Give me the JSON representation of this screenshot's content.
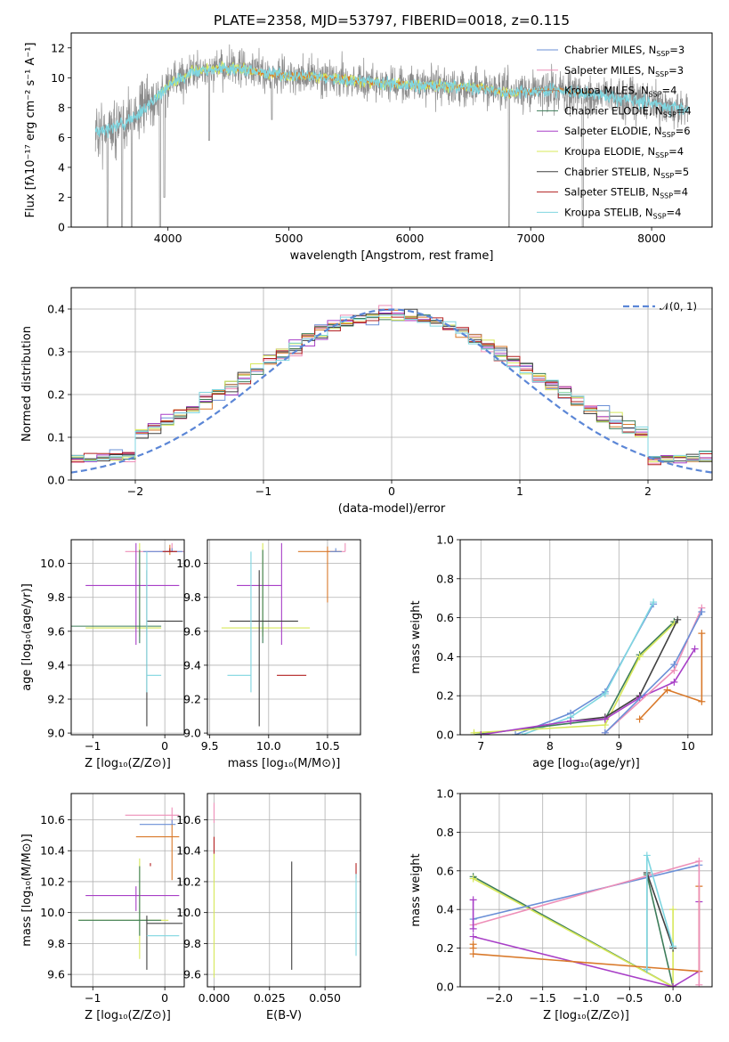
{
  "title": "PLATE=2358, MJD=53797, FIBERID=0018, z=0.115",
  "colors": {
    "Chabrier MILES": "#6a8fd6",
    "Salpeter MILES": "#ee8fb8",
    "Kroupa MILES": "#8a8a8a",
    "Chabrier ELODIE": "#3d7d5a",
    "Salpeter ELODIE": "#a83fc7",
    "Kroupa ELODIE": "#d7e85a",
    "Chabrier STELIB": "#404040",
    "Salpeter STELIB": "#b32020",
    "Kroupa STELIB": "#7fd6e0",
    "orange": "#d9792a",
    "purple": "#7b2fa8",
    "lime": "#b8ec4c",
    "normal_curve": "#5b86d6"
  },
  "chart_data": [
    {
      "id": "spectrum",
      "type": "line",
      "title": "PLATE=2358, MJD=53797, FIBERID=0018, z=0.115",
      "xlabel": "wavelength [Angstrom, rest frame]",
      "ylabel": "Flux [fλ10⁻¹⁷ erg cm⁻² s⁻¹ A⁻¹]",
      "xlim": [
        3200,
        8500
      ],
      "ylim": [
        0,
        13
      ],
      "xticks": [
        "4000",
        "5000",
        "6000",
        "7000",
        "8000"
      ],
      "yticks": [
        "0",
        "2",
        "4",
        "6",
        "8",
        "10",
        "12"
      ],
      "grid": false,
      "legend_position": "right",
      "legend": [
        {
          "label": "Chabrier MILES, N",
          "sub": "SSP",
          "tail": "=3",
          "series": "Chabrier MILES"
        },
        {
          "label": "Salpeter MILES, N",
          "sub": "SSP",
          "tail": "=3",
          "series": "Salpeter MILES"
        },
        {
          "label": "Kroupa MILES, N",
          "sub": "SSP",
          "tail": "=4",
          "series": "Kroupa MILES"
        },
        {
          "label": "Chabrier ELODIE, N",
          "sub": "SSP",
          "tail": "=4",
          "series": "Chabrier ELODIE"
        },
        {
          "label": "Salpeter ELODIE, N",
          "sub": "SSP",
          "tail": "=6",
          "series": "Salpeter ELODIE"
        },
        {
          "label": "Kroupa ELODIE, N",
          "sub": "SSP",
          "tail": "=4",
          "series": "Kroupa ELODIE"
        },
        {
          "label": "Chabrier STELIB, N",
          "sub": "SSP",
          "tail": "=5",
          "series": "Chabrier STELIB"
        },
        {
          "label": "Salpeter STELIB, N",
          "sub": "SSP",
          "tail": "=4",
          "series": "Salpeter STELIB"
        },
        {
          "label": "Kroupa STELIB, N",
          "sub": "SSP",
          "tail": "=4",
          "series": "Kroupa STELIB"
        }
      ],
      "continuum": {
        "x": [
          3400,
          3500,
          3600,
          3700,
          3800,
          3900,
          4000,
          4200,
          4400,
          4600,
          4800,
          5000,
          5200,
          5400,
          5600,
          5800,
          6000,
          6200,
          6400,
          6600,
          6800,
          7000,
          7200,
          7400,
          7600,
          7800,
          8000,
          8200,
          8300
        ],
        "y": [
          6.4,
          6.5,
          6.8,
          7.3,
          7.9,
          8.6,
          9.5,
          10.4,
          10.6,
          10.6,
          10.3,
          10.1,
          10.1,
          9.9,
          9.8,
          9.6,
          9.5,
          9.5,
          9.4,
          9.3,
          9.0,
          9.1,
          9.2,
          9.0,
          8.8,
          8.6,
          8.3,
          8.0,
          7.9
        ]
      },
      "data_noise": 1.1,
      "model_line": "Kroupa STELIB",
      "data_line": "Kroupa MILES",
      "dips": [
        {
          "x": 3500,
          "y": 0.0
        },
        {
          "x": 3620,
          "y": 0.0
        },
        {
          "x": 3700,
          "y": 0.0
        },
        {
          "x": 3935,
          "y": 0.0
        },
        {
          "x": 3970,
          "y": 2.0
        },
        {
          "x": 4340,
          "y": 5.8
        },
        {
          "x": 4860,
          "y": 7.2
        },
        {
          "x": 6820,
          "y": 0.0
        },
        {
          "x": 7430,
          "y": 0.0
        }
      ]
    },
    {
      "id": "residual-hist",
      "type": "histogram",
      "xlabel": "(data-model)/error",
      "ylabel": "Normed distribution",
      "xlim": [
        -2.5,
        2.5
      ],
      "ylim": [
        0,
        0.45
      ],
      "xticks": [
        "−2",
        "−1",
        "0",
        "1",
        "2"
      ],
      "yticks": [
        "0.0",
        "0.1",
        "0.2",
        "0.3",
        "0.4"
      ],
      "grid": true,
      "legend_position": "top-right",
      "legend": {
        "label": "𝒩(0, 1)"
      },
      "bin_width": 0.1,
      "bin_start": -2.5,
      "series": [
        "Chabrier MILES",
        "Salpeter MILES",
        "orange",
        "Chabrier ELODIE",
        "Salpeter ELODIE",
        "Kroupa ELODIE",
        "Chabrier STELIB",
        "Salpeter STELIB",
        "Kroupa STELIB"
      ]
    },
    {
      "id": "age-vs-Z",
      "type": "errorbar",
      "xlabel": "Z [log₁₀(Z/Z⊙)]",
      "ylabel": "age  [log₁₀(age/yr)]",
      "xlim": [
        -1.3,
        0.27
      ],
      "ylim": [
        8.99,
        10.14
      ],
      "xticks": [
        "−1",
        "0"
      ],
      "yticks": [
        "9.0",
        "9.2",
        "9.4",
        "9.6",
        "9.8",
        "10.0"
      ],
      "grid": true,
      "points": [
        {
          "c": "Salpeter MILES",
          "x": 0.1,
          "xerr": [
            0.65,
            0.3
          ],
          "y": 10.07,
          "yerr": [
            0.0,
            0.05
          ]
        },
        {
          "c": "orange",
          "x": 0.07,
          "xerr": [
            0.05,
            0.1
          ],
          "y": 10.07,
          "yerr": [
            0.02,
            0.04
          ]
        },
        {
          "c": "Chabrier MILES",
          "x": 0.1,
          "xerr": [
            0.4,
            0.15
          ],
          "y": 10.07,
          "yerr": [
            0.0,
            0.02
          ]
        },
        {
          "c": "Kroupa ELODIE",
          "x": -0.35,
          "xerr": [
            0.75,
            0.3
          ],
          "y": 9.62,
          "yerr": [
            0.05,
            0.5
          ]
        },
        {
          "c": "Salpeter ELODIE",
          "x": -0.4,
          "xerr": [
            0.7,
            0.6
          ],
          "y": 9.87,
          "yerr": [
            0.35,
            0.25
          ]
        },
        {
          "c": "Chabrier ELODIE",
          "x": -0.35,
          "xerr": [
            0.95,
            0.3
          ],
          "y": 9.63,
          "yerr": [
            0.1,
            0.45
          ]
        },
        {
          "c": "Chabrier STELIB",
          "x": -0.25,
          "xerr": [
            0.0,
            0.5
          ],
          "y": 9.66,
          "yerr": [
            0.62,
            0.3
          ]
        },
        {
          "c": "Kroupa STELIB",
          "x": -0.25,
          "xerr": [
            0.0,
            0.2
          ],
          "y": 9.34,
          "yerr": [
            0.1,
            0.73
          ]
        },
        {
          "c": "Salpeter STELIB",
          "x": 0.07,
          "xerr": [
            0.1,
            0.1
          ],
          "y": 10.07,
          "yerr": [
            0.0,
            0.02
          ]
        }
      ]
    },
    {
      "id": "age-vs-mass",
      "type": "errorbar",
      "xlabel": "mass [log₁₀(M/M⊙)]",
      "ylabel": "",
      "xlim": [
        9.48,
        10.78
      ],
      "ylim": [
        8.99,
        10.14
      ],
      "xticks": [
        "9.5",
        "10.0",
        "10.5"
      ],
      "yticks": [
        "9.0",
        "9.2",
        "9.4",
        "9.6",
        "9.8",
        "10.0"
      ],
      "grid": true,
      "points": [
        {
          "c": "Salpeter MILES",
          "x": 10.65,
          "xerr": [
            0.15,
            0.0
          ],
          "y": 10.07,
          "yerr": [
            0.0,
            0.05
          ]
        },
        {
          "c": "orange",
          "x": 10.5,
          "xerr": [
            0.25,
            0.12
          ],
          "y": 10.07,
          "yerr": [
            0.3,
            0.03
          ]
        },
        {
          "c": "Chabrier MILES",
          "x": 10.57,
          "xerr": [
            0.05,
            0.05
          ],
          "y": 10.07,
          "yerr": [
            0.0,
            0.02
          ]
        },
        {
          "c": "Kroupa ELODIE",
          "x": 9.95,
          "xerr": [
            0.35,
            0.4
          ],
          "y": 9.62,
          "yerr": [
            0.05,
            0.5
          ]
        },
        {
          "c": "Salpeter ELODIE",
          "x": 10.11,
          "xerr": [
            0.38,
            0.0
          ],
          "y": 9.87,
          "yerr": [
            0.35,
            0.25
          ]
        },
        {
          "c": "Chabrier ELODIE",
          "x": 9.95,
          "xerr": [
            0.0,
            0.0
          ],
          "y": 9.63,
          "yerr": [
            0.1,
            0.45
          ]
        },
        {
          "c": "Chabrier STELIB",
          "x": 9.92,
          "xerr": [
            0.25,
            0.33
          ],
          "y": 9.66,
          "yerr": [
            0.62,
            0.3
          ]
        },
        {
          "c": "Kroupa STELIB",
          "x": 9.85,
          "xerr": [
            0.2,
            0.0
          ],
          "y": 9.34,
          "yerr": [
            0.1,
            0.73
          ]
        },
        {
          "c": "Salpeter STELIB",
          "x": 10.32,
          "xerr": [
            0.25,
            0.0
          ],
          "y": 9.34,
          "yerr": [
            0.0,
            0.0
          ]
        }
      ]
    },
    {
      "id": "weight-vs-age",
      "type": "line",
      "xlabel": "age  [log₁₀(age/yr)]",
      "ylabel": "mass weight",
      "xlim": [
        6.7,
        10.35
      ],
      "ylim": [
        0,
        1
      ],
      "xticks": [
        "7",
        "8",
        "9",
        "10"
      ],
      "yticks": [
        "0.0",
        "0.2",
        "0.4",
        "0.6",
        "0.8",
        "1.0"
      ],
      "grid": true,
      "series": [
        {
          "c": "Chabrier MILES",
          "x": [
            7.5,
            8.3,
            8.8,
            9.5
          ],
          "y": [
            0.0,
            0.11,
            0.22,
            0.67
          ]
        },
        {
          "c": "Kroupa STELIB",
          "x": [
            7.6,
            8.3,
            8.8,
            9.5
          ],
          "y": [
            0.0,
            0.09,
            0.21,
            0.68
          ]
        },
        {
          "c": "Chabrier ELODIE",
          "x": [
            6.9,
            8.8,
            9.3,
            9.8
          ],
          "y": [
            0.0,
            0.08,
            0.41,
            0.58
          ]
        },
        {
          "c": "Kroupa ELODIE",
          "x": [
            6.9,
            8.8,
            9.3,
            9.8
          ],
          "y": [
            0.01,
            0.05,
            0.4,
            0.57
          ]
        },
        {
          "c": "Chabrier STELIB",
          "x": [
            8.3,
            8.8,
            9.3,
            9.85
          ],
          "y": [
            0.07,
            0.09,
            0.2,
            0.59
          ]
        },
        {
          "c": "Salpeter ELODIE",
          "x": [
            7.0,
            8.3,
            8.8,
            9.3,
            9.8,
            10.1
          ],
          "y": [
            0.0,
            0.07,
            0.08,
            0.19,
            0.27,
            0.44
          ]
        },
        {
          "c": "Salpeter MILES",
          "x": [
            8.8,
            9.8,
            10.2
          ],
          "y": [
            0.01,
            0.33,
            0.65
          ]
        },
        {
          "c": "Chabrier MILES",
          "x": [
            8.8,
            9.8,
            10.2
          ],
          "y": [
            0.01,
            0.36,
            0.63
          ]
        },
        {
          "c": "orange",
          "x": [
            9.3,
            9.7,
            10.2,
            10.2
          ],
          "y": [
            0.08,
            0.23,
            0.17,
            0.52
          ]
        }
      ]
    },
    {
      "id": "mass-vs-Z",
      "type": "errorbar",
      "xlabel": "Z [log₁₀(Z/Z⊙)]",
      "ylabel": "mass [log₁₀(M/M⊙)]",
      "xlim": [
        -1.3,
        0.27
      ],
      "ylim": [
        9.52,
        10.77
      ],
      "xticks": [
        "−1",
        "0"
      ],
      "yticks": [
        "9.6",
        "9.8",
        "10.0",
        "10.2",
        "10.4",
        "10.6"
      ],
      "grid": true,
      "points": [
        {
          "c": "Salpeter MILES",
          "x": 0.1,
          "xerr": [
            0.65,
            0.1
          ],
          "y": 10.63,
          "yerr": [
            0.05,
            0.05
          ]
        },
        {
          "c": "Chabrier MILES",
          "x": 0.1,
          "xerr": [
            0.45,
            0.05
          ],
          "y": 10.57,
          "yerr": [
            0.0,
            0.03
          ]
        },
        {
          "c": "orange",
          "x": 0.1,
          "xerr": [
            0.5,
            0.1
          ],
          "y": 10.49,
          "yerr": [
            0.28,
            0.08
          ]
        },
        {
          "c": "Salpeter ELODIE",
          "x": -0.4,
          "xerr": [
            0.7,
            0.6
          ],
          "y": 10.11,
          "yerr": [
            0.1,
            0.06
          ]
        },
        {
          "c": "Kroupa ELODIE",
          "x": -0.35,
          "xerr": [
            0.85,
            0.4
          ],
          "y": 9.95,
          "yerr": [
            0.25,
            0.4
          ]
        },
        {
          "c": "Chabrier ELODIE",
          "x": -0.35,
          "xerr": [
            0.85,
            0.3
          ],
          "y": 9.95,
          "yerr": [
            0.1,
            0.35
          ]
        },
        {
          "c": "Chabrier STELIB",
          "x": -0.25,
          "xerr": [
            0.0,
            0.5
          ],
          "y": 9.93,
          "yerr": [
            0.3,
            0.05
          ]
        },
        {
          "c": "Kroupa STELIB",
          "x": -0.25,
          "xerr": [
            0.0,
            0.45
          ],
          "y": 9.85,
          "yerr": [
            0.0,
            0.0
          ]
        },
        {
          "c": "Salpeter STELIB",
          "x": -0.2,
          "xerr": [
            0.0,
            0.0
          ],
          "y": 10.3,
          "yerr": [
            0.0,
            0.02
          ]
        }
      ]
    },
    {
      "id": "mass-vs-ebv",
      "type": "errorbar",
      "xlabel": "E(B-V)",
      "ylabel": "",
      "xlim": [
        -0.003,
        0.066
      ],
      "ylim": [
        9.52,
        10.77
      ],
      "xticks": [
        "0.000",
        "0.025",
        "0.050"
      ],
      "yticks": [
        "9.6",
        "9.8",
        "10.0",
        "10.2",
        "10.4",
        "10.6"
      ],
      "grid": true,
      "points": [
        {
          "c": "Salpeter MILES",
          "x": 0.0,
          "y": 10.63,
          "yerr": [
            0.05,
            0.08
          ]
        },
        {
          "c": "Salpeter STELIB",
          "x": 0.0,
          "y": 10.43,
          "yerr": [
            0.05,
            0.06
          ]
        },
        {
          "c": "Kroupa ELODIE",
          "x": 0.0,
          "y": 10.0,
          "yerr": [
            0.42,
            0.38
          ]
        },
        {
          "c": "Chabrier STELIB",
          "x": 0.035,
          "y": 9.98,
          "yerr": [
            0.35,
            0.35
          ]
        },
        {
          "c": "Salpeter STELIB",
          "x": 0.064,
          "y": 10.27,
          "yerr": [
            0.05,
            0.05
          ]
        },
        {
          "c": "Kroupa STELIB",
          "x": 0.064,
          "y": 10.0,
          "yerr": [
            0.28,
            0.25
          ]
        }
      ]
    },
    {
      "id": "weight-vs-Z",
      "type": "line",
      "xlabel": "Z [log₁₀(Z/Z⊙)]",
      "ylabel": "mass weight",
      "xlim": [
        -2.45,
        0.45
      ],
      "ylim": [
        0,
        1
      ],
      "xticks": [
        "−2.0",
        "−1.5",
        "−1.0",
        "−0.5",
        "0.0"
      ],
      "yticks": [
        "0.0",
        "0.2",
        "0.4",
        "0.6",
        "0.8",
        "1.0"
      ],
      "grid": true,
      "series": [
        {
          "c": "Chabrier ELODIE",
          "x": [
            -2.3,
            0.0,
            -0.3
          ],
          "y": [
            0.57,
            0.0,
            0.58
          ]
        },
        {
          "c": "Kroupa ELODIE",
          "x": [
            -2.3,
            0.0,
            0.0
          ],
          "y": [
            0.56,
            0.0,
            0.4
          ]
        },
        {
          "c": "Salpeter ELODIE",
          "x": [
            -2.3,
            0.0,
            0.3,
            0.3
          ],
          "y": [
            0.26,
            0.0,
            0.08,
            0.44
          ]
        },
        {
          "c": "orange",
          "x": [
            -2.3,
            0.3,
            0.3
          ],
          "y": [
            0.17,
            0.08,
            0.52
          ]
        },
        {
          "c": "Chabrier MILES",
          "x": [
            -2.3,
            0.3
          ],
          "y": [
            0.35,
            0.63
          ]
        },
        {
          "c": "Salpeter MILES",
          "x": [
            -2.3,
            0.3,
            0.3
          ],
          "y": [
            0.32,
            0.65,
            0.01
          ]
        },
        {
          "c": "Chabrier STELIB",
          "x": [
            -0.3,
            -0.3,
            0.0
          ],
          "y": [
            0.09,
            0.59,
            0.2
          ]
        },
        {
          "c": "Kroupa STELIB",
          "x": [
            -0.3,
            -0.3,
            0.0
          ],
          "y": [
            0.09,
            0.68,
            0.21
          ]
        },
        {
          "c": "Salpeter ELODIE",
          "x": [
            -2.3,
            -2.3
          ],
          "y": [
            0.3,
            0.45
          ]
        },
        {
          "c": "orange",
          "x": [
            -2.3,
            -2.3
          ],
          "y": [
            0.2,
            0.22
          ]
        }
      ]
    }
  ]
}
